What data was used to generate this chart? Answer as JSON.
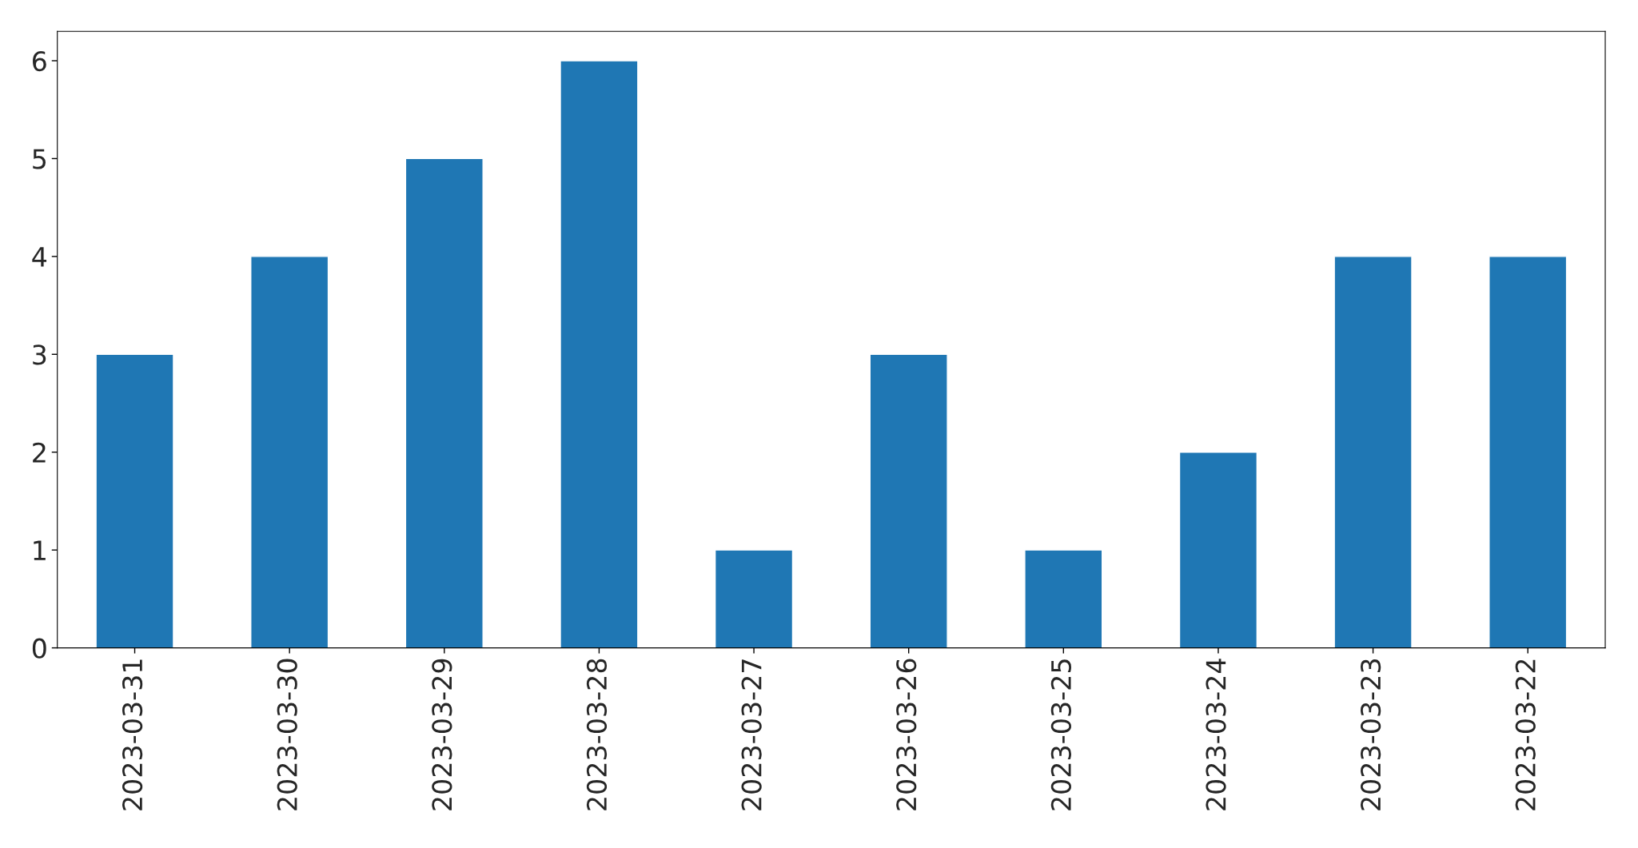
{
  "chart_data": {
    "type": "bar",
    "categories": [
      "2023-03-31",
      "2023-03-30",
      "2023-03-29",
      "2023-03-28",
      "2023-03-27",
      "2023-03-26",
      "2023-03-25",
      "2023-03-24",
      "2023-03-23",
      "2023-03-22"
    ],
    "values": [
      3,
      4,
      5,
      6,
      1,
      3,
      1,
      2,
      4,
      4
    ],
    "color": "#1f77b4",
    "ylim": [
      0,
      6.3
    ],
    "yticks": [
      0,
      1,
      2,
      3,
      4,
      5,
      6
    ],
    "grid": false,
    "legend": false
  }
}
